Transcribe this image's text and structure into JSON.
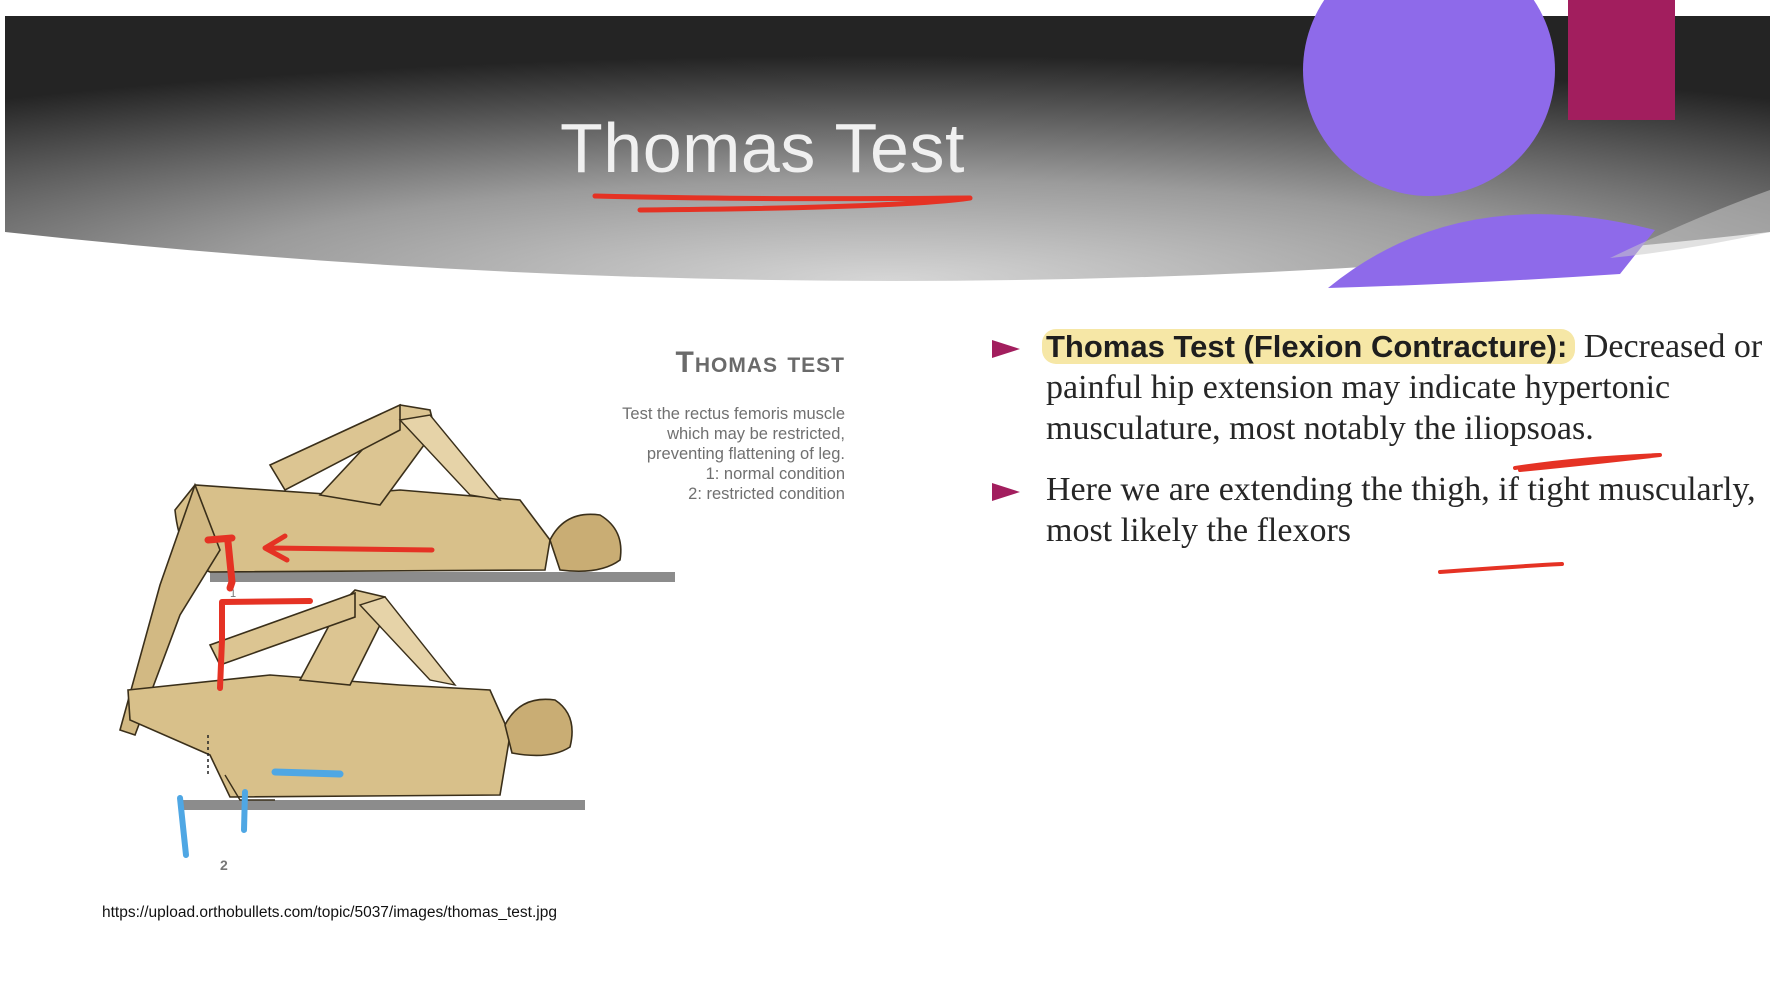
{
  "slide": {
    "title": "Thomas Test",
    "colors": {
      "banner_dark": "#1f1f1f",
      "banner_light": "#d4d4d4",
      "circle_purple": "#8e6aea",
      "accent_magenta": "#a21e5e",
      "bullet_magenta": "#a21e5e",
      "annotation_red": "#e53224",
      "annotation_blue": "#4fa7e4",
      "highlight_yellow": "#f6e7a6",
      "skin": "#d8c08a",
      "table_gray": "#8c8c8c"
    }
  },
  "figure": {
    "title": "Thomas test",
    "caption_lines": [
      "Test the rectus femoris muscle",
      "which may be restricted,",
      "preventing flattening of leg.",
      "1: normal condition",
      "2:  restricted condition"
    ],
    "label_1": "1",
    "label_2": "2",
    "source_url": "https://upload.orthobullets.com/topic/5037/images/thomas_test.jpg"
  },
  "bullets": [
    {
      "icon": "triangle-bullet-icon",
      "term": "Thomas Test (Flexion Contracture):",
      "text": " Decreased or painful hip extension may indicate hypertonic musculature, most notably the iliopsoas."
    },
    {
      "icon": "triangle-bullet-icon",
      "term": "",
      "text": "Here we are extending the thigh, if tight muscularly, most likely the flexors"
    }
  ]
}
